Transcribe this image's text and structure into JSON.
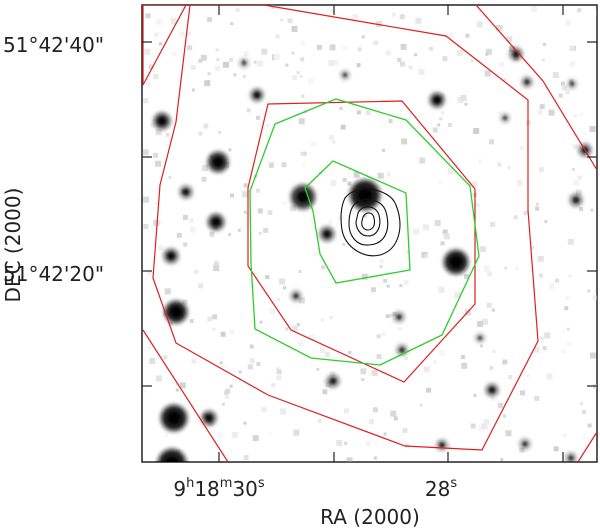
{
  "chart_data": {
    "type": "contour-map",
    "xlabel": "RA (2000)",
    "ylabel": "DEC (2000)",
    "x_ticks": [
      {
        "h": "9",
        "m": "18",
        "s": "30"
      },
      {
        "s": "28"
      }
    ],
    "y_ticks": [
      "51°42'40\"",
      "51°42'20\""
    ],
    "contour_colors": {
      "red": "#dd1f1f",
      "green": "#2ecc2e",
      "black": "#111111"
    },
    "background": "greyscale optical image with point sources",
    "grid": false
  }
}
